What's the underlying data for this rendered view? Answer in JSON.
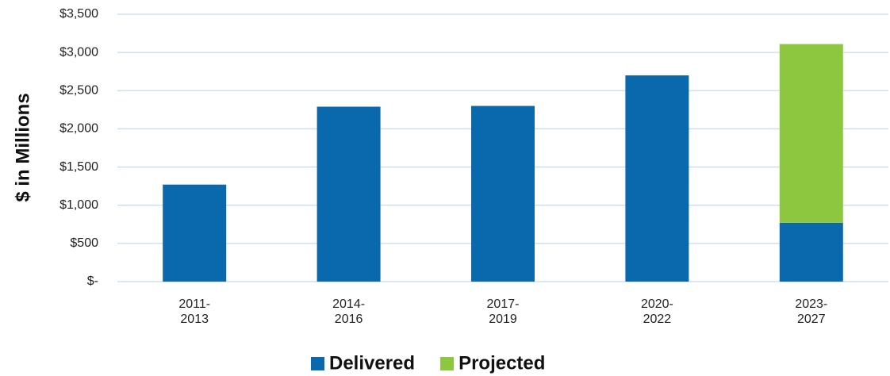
{
  "chart_data": {
    "type": "stacked_bar",
    "y_label": "$ in Millions",
    "categories": [
      "2011-\n2013",
      "2014-\n2016",
      "2017-\n2019",
      "2020-\n2022",
      "2023-\n2027"
    ],
    "series": [
      {
        "name": "Delivered",
        "color": "#0a69ad",
        "values": [
          1270,
          2290,
          2300,
          2700,
          770
        ]
      },
      {
        "name": "Projected",
        "color": "#8dc63f",
        "values": [
          null,
          null,
          null,
          null,
          2340
        ]
      }
    ],
    "ylim": [
      0,
      3500
    ],
    "yticks": [
      {
        "value": 0,
        "label": "$-"
      },
      {
        "value": 500,
        "label": "$500"
      },
      {
        "value": 1000,
        "label": "$1,000"
      },
      {
        "value": 1500,
        "label": "$1,500"
      },
      {
        "value": 2000,
        "label": "$2,000"
      },
      {
        "value": 2500,
        "label": "$2,500"
      },
      {
        "value": 3000,
        "label": "$3,000"
      },
      {
        "value": 3500,
        "label": "$3,500"
      }
    ],
    "grid": true,
    "legend": "bottom"
  }
}
